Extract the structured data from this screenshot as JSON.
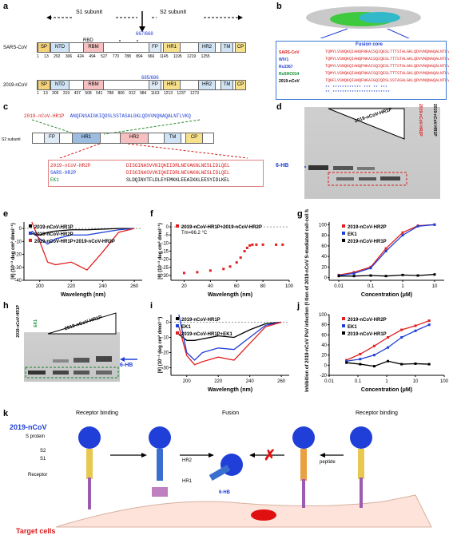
{
  "panels": {
    "a": "a",
    "b": "b",
    "c": "c",
    "d": "d",
    "e": "e",
    "f": "f",
    "g": "g",
    "h": "h",
    "i": "i",
    "j": "j",
    "k": "k"
  },
  "a": {
    "s1": "S1 subunit",
    "s2": "S2 subunit",
    "cleave1": "667/668",
    "cleave2": "685/686",
    "sars_label": "SARS-CoV",
    "ncov_label": "2019-nCoV",
    "rbd": "RBD",
    "domains": [
      "SP",
      "NTD",
      "RBM",
      "FP",
      "HR1",
      "HR2",
      "TM",
      "CP"
    ],
    "sars_nums": [
      "1",
      "13",
      "292",
      "306",
      "424",
      "494",
      "527",
      "770",
      "788",
      "894",
      "966",
      "1145",
      "1195",
      "1219",
      "1255"
    ],
    "ncov_nums": [
      "1",
      "13",
      "305",
      "319",
      "437",
      "508",
      "541",
      "788",
      "806",
      "912",
      "984",
      "1163",
      "1213",
      "1237",
      "1273"
    ]
  },
  "b": {
    "fusion_core": "Fusion core",
    "species": [
      "SARS-CoV",
      "WIV1",
      "Rs3367",
      "RsSHC014",
      "2019-nCoV"
    ],
    "species_colors": [
      "#d81b1b",
      "#1f3fd8",
      "#1f3fd8",
      "#0a8a2a",
      "#000000"
    ],
    "seqs": [
      "TQMYLVSNQKQIANQFNKAISQIQESLTTTSTALGKLQDVVNQNAQALNTLVKQL",
      "TQMYLVSNQKQIANQFNKAISQIQESLTTTSTALGKLQDVVNQNAQALNTLVKQL",
      "TQMYLVSNQKQIANQFNKAISQIQESLTTTSTALGKLQDVVNQNAQALNTLVKQL",
      "TQMYLVSNQKQIANQFNKAISQIQESLTTTSTALGKLQDVVNQNAQALNTLVKQL",
      "TQKFLVSNQKQIANQFNKAIGQIQDSLSSTASALGKLQDVVNQNAQALNTLVKQL"
    ],
    "consensus": "** ************ *** ** ***  **.************************"
  },
  "c": {
    "hr1p_label": "2019-nCoV-HR1P",
    "hr1p_seq": "ANQFNSAIGKIQDSLSSTASALGKLQDVVNQNAQALNTLVKQ",
    "s2_label": "S2 subunit",
    "domains": [
      "FP",
      "HR1",
      "HR2",
      "TM",
      "CP"
    ],
    "hr2p_label": "2019-nCoV-HR2P",
    "hr2p_seq": "DISGINASVVNIQKEIDRLNEVAKNLNESLIDLQEL",
    "sars_hr2p_label": "SARS-HR2P",
    "sars_hr2p_seq": "DISGINASVVNIQKEIDRLNEVAKNLNESLIDLQEL",
    "ek1_label": "EK1",
    "ek1_seq": "SLDQINVTFLDLEYEMKKLEEAIKKLEESYIDLKEL"
  },
  "d": {
    "lane1": "2019-nCoV-HR1P",
    "lane2": "2019-nCoV-HR2P",
    "lane3": "2019-nCoV-HR1P",
    "sixhb": "6-HB"
  },
  "e": {
    "legend": [
      "2019-nCoV-HR1P",
      "2019-nCoV-HR2P",
      "2019-nCoV-HR1P+2019-nCoV-HR2P"
    ],
    "legend_colors": [
      "#000000",
      "#1f3fd8",
      "#e02020"
    ],
    "ylabel": "[θ] (10⁻³ deg cm² dmol⁻¹)",
    "xlabel": "Wavelength (nm)",
    "xticks": [
      "200",
      "220",
      "240",
      "260"
    ],
    "yticks": [
      "0",
      "-10",
      "-20",
      "-30",
      "-40"
    ]
  },
  "f": {
    "legend": "2019-nCoV-HR1P+2019-nCoV-HR2P",
    "tm": "Tm=66.2 °C",
    "ylabel": "[θ] (10⁻³ deg cm² dmol⁻¹)",
    "xlabel": "Wavelength (nm)",
    "xticks": [
      "20",
      "40",
      "60",
      "80",
      "100"
    ],
    "yticks": [
      "0",
      "-5",
      "-10",
      "-15",
      "-20",
      "-25",
      "-30"
    ]
  },
  "g": {
    "legend": [
      "2019-nCoV-HR2P",
      "EK1",
      "2019-nCoV-HR1P"
    ],
    "legend_colors": [
      "#e02020",
      "#1f3fd8",
      "#000000"
    ],
    "ylabel": "Inhibition of 2019-nCoV S-mediated cell-cell fusion (%)",
    "xlabel": "Concentration (μM)",
    "xticks": [
      "0.01",
      "0.1",
      "1",
      "10"
    ],
    "yticks": [
      "0",
      "20",
      "40",
      "60",
      "80",
      "100"
    ]
  },
  "h": {
    "lane1": "2019-nCoV-HR1P",
    "lane2": "EK1",
    "lane3": "2019-nCoV-HR1P",
    "sixhb": "6-HB"
  },
  "i": {
    "legend": [
      "2019-nCoV-HR1P",
      "EK1",
      "2019-nCoV-HR1P+EK1"
    ],
    "legend_colors": [
      "#000000",
      "#1f3fd8",
      "#e02020"
    ],
    "ylabel": "[θ] (10⁻³ deg cm² dmol⁻¹)",
    "xlabel": "Wavelength (nm)",
    "xticks": [
      "200",
      "220",
      "240",
      "260"
    ],
    "yticks": [
      "0",
      "-10",
      "-20",
      "-30"
    ]
  },
  "j": {
    "legend": [
      "2019-nCoV-HR2P",
      "EK1",
      "2019-nCoV-HR1P"
    ],
    "legend_colors": [
      "#e02020",
      "#1f3fd8",
      "#000000"
    ],
    "ylabel": "Inhibition of 2019-nCoV PsV infection (%)",
    "xlabel": "Concentration (μM)",
    "xticks": [
      "0.01",
      "0.1",
      "1",
      "10",
      "100"
    ],
    "yticks": [
      "-20",
      "0",
      "20",
      "40",
      "60",
      "80",
      "100"
    ]
  },
  "k": {
    "receptor_binding": "Receptor binding",
    "fusion": "Fusion",
    "receptor_binding2": "Receptor binding",
    "virus": "2019-nCoV",
    "s_protein": "S protein",
    "s2": "S2",
    "s1": "S1",
    "receptor": "Receptor",
    "hr2": "HR2",
    "hr1": "HR1",
    "sixhb": "6-HB",
    "peptide": "peptide",
    "target": "Target cells"
  },
  "chart_data": [
    {
      "type": "line",
      "panel": "e",
      "xlabel": "Wavelength (nm)",
      "ylabel": "[θ] (10⁻³ deg cm² dmol⁻¹)",
      "xlim": [
        190,
        265
      ],
      "ylim": [
        -40,
        5
      ],
      "series": [
        {
          "name": "2019-nCoV-HR1P",
          "x": [
            195,
            200,
            205,
            210,
            220,
            230,
            240,
            250,
            260
          ],
          "y": [
            -4,
            -5,
            -3,
            -2,
            -1,
            -1,
            -0.5,
            0,
            0
          ]
        },
        {
          "name": "2019-nCoV-HR2P",
          "x": [
            195,
            200,
            205,
            210,
            220,
            230,
            240,
            250,
            260
          ],
          "y": [
            -2,
            -8,
            -12,
            -8,
            -5,
            -5,
            -3,
            -1,
            0
          ]
        },
        {
          "name": "2019-nCoV-HR1P+2019-nCoV-HR2P",
          "x": [
            195,
            200,
            205,
            210,
            220,
            230,
            240,
            250,
            260
          ],
          "y": [
            5,
            -10,
            -26,
            -28,
            -26,
            -32,
            -18,
            -3,
            0
          ]
        }
      ]
    },
    {
      "type": "scatter",
      "panel": "f",
      "xlabel": "Wavelength (nm)",
      "ylabel": "[θ] (10⁻³ deg cm² dmol⁻¹)",
      "xlim": [
        10,
        100
      ],
      "ylim": [
        -33,
        3
      ],
      "series": [
        {
          "name": "2019-nCoV-HR1P+2019-nCoV-HR2P",
          "x": [
            20,
            30,
            40,
            50,
            55,
            60,
            63,
            66,
            68,
            70,
            72,
            75,
            80,
            90,
            95
          ],
          "y": [
            -28.5,
            -28,
            -27,
            -26,
            -24.5,
            -22,
            -19,
            -15,
            -13,
            -11.5,
            -11,
            -11,
            -11,
            -11,
            -11
          ]
        }
      ]
    },
    {
      "type": "line",
      "panel": "g",
      "xlabel": "Concentration (μM)",
      "ylabel": "Inhibition of 2019-nCoV S-mediated cell-cell fusion (%)",
      "xscale": "log",
      "xlim": [
        0.005,
        20
      ],
      "ylim": [
        -5,
        105
      ],
      "series": [
        {
          "name": "2019-nCoV-HR2P",
          "x": [
            0.01,
            0.03,
            0.1,
            0.3,
            1,
            3,
            10
          ],
          "y": [
            5,
            10,
            20,
            55,
            85,
            98,
            100
          ]
        },
        {
          "name": "EK1",
          "x": [
            0.01,
            0.03,
            0.1,
            0.3,
            1,
            3,
            10
          ],
          "y": [
            4,
            8,
            18,
            50,
            80,
            97,
            100
          ]
        },
        {
          "name": "2019-nCoV-HR1P",
          "x": [
            0.01,
            0.03,
            0.1,
            0.3,
            1,
            3,
            10
          ],
          "y": [
            3,
            3,
            4,
            3,
            5,
            4,
            6
          ]
        }
      ]
    },
    {
      "type": "line",
      "panel": "i",
      "xlabel": "Wavelength (nm)",
      "ylabel": "[θ] (10⁻³ deg cm² dmol⁻¹)",
      "xlim": [
        190,
        265
      ],
      "ylim": [
        -35,
        5
      ],
      "series": [
        {
          "name": "2019-nCoV-HR1P",
          "x": [
            195,
            200,
            205,
            210,
            220,
            230,
            240,
            250,
            260
          ],
          "y": [
            -8,
            -12,
            -12,
            -11,
            -9,
            -10,
            -5,
            -1,
            0
          ]
        },
        {
          "name": "EK1",
          "x": [
            195,
            200,
            205,
            210,
            220,
            230,
            240,
            250,
            260
          ],
          "y": [
            5,
            -20,
            -25,
            -20,
            -17,
            -18,
            -10,
            -2,
            0
          ]
        },
        {
          "name": "2019-nCoV-HR1P+EK1",
          "x": [
            195,
            200,
            205,
            210,
            220,
            230,
            240,
            250,
            260
          ],
          "y": [
            -3,
            -22,
            -28,
            -26,
            -23,
            -25,
            -14,
            -3,
            0
          ]
        }
      ]
    },
    {
      "type": "line",
      "panel": "j",
      "xlabel": "Concentration (μM)",
      "ylabel": "Inhibition of 2019-nCoV PsV infection (%)",
      "xscale": "log",
      "xlim": [
        0.01,
        100
      ],
      "ylim": [
        -20,
        100
      ],
      "series": [
        {
          "name": "2019-nCoV-HR2P",
          "x": [
            0.04,
            0.12,
            0.37,
            1.1,
            3.3,
            10,
            30
          ],
          "y": [
            10,
            22,
            38,
            55,
            70,
            78,
            88
          ]
        },
        {
          "name": "EK1",
          "x": [
            0.04,
            0.12,
            0.37,
            1.1,
            3.3,
            10,
            30
          ],
          "y": [
            8,
            12,
            20,
            35,
            55,
            68,
            80
          ]
        },
        {
          "name": "2019-nCoV-HR1P",
          "x": [
            0.04,
            0.12,
            0.37,
            1.1,
            3.3,
            10,
            30
          ],
          "y": [
            5,
            2,
            -2,
            8,
            2,
            3,
            2
          ]
        }
      ]
    }
  ]
}
